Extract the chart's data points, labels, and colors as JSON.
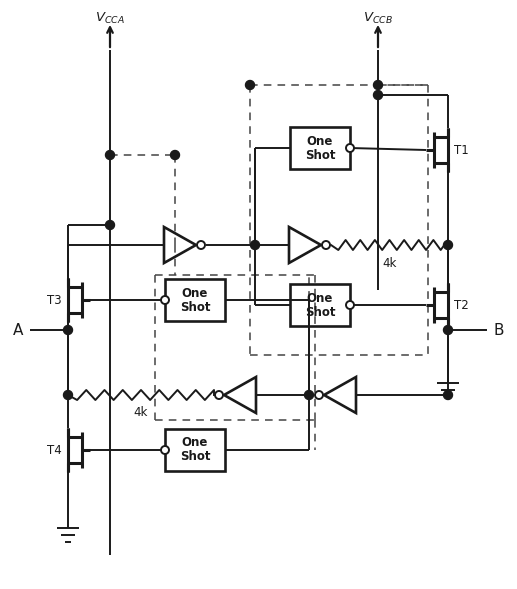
{
  "background_color": "#ffffff",
  "line_color": "#1a1a1a",
  "lw": 1.4,
  "dlw": 1.1,
  "figsize": [
    5.17,
    5.89
  ],
  "dpi": 100,
  "vcca_label": "$V_{CCA}$",
  "vccb_label": "$V_{CCB}$",
  "label_A": "A",
  "label_B": "B",
  "label_T1": "T1",
  "label_T2": "T2",
  "label_T3": "T3",
  "label_T4": "T4",
  "label_4k": "4k"
}
